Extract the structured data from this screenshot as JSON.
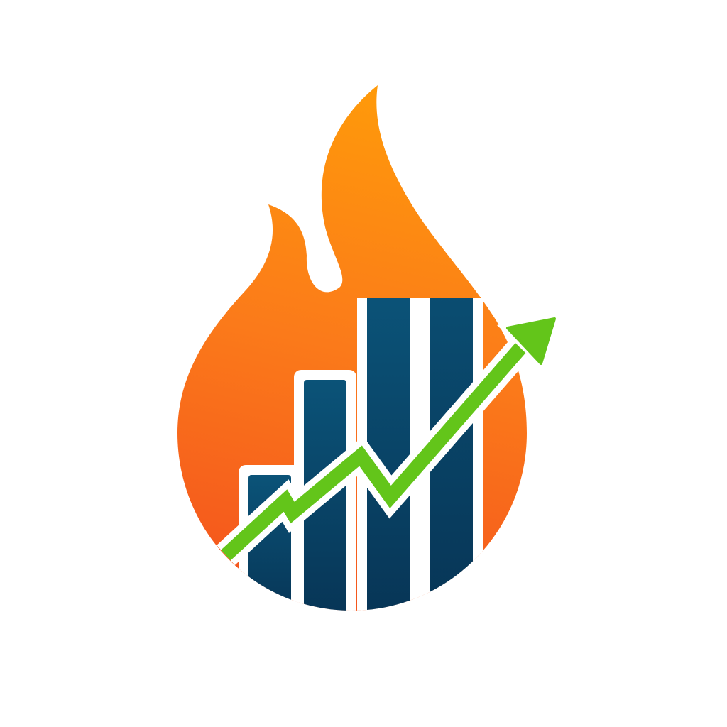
{
  "logo": {
    "icon": "flame-growth-chart-logo",
    "elements": [
      "flame-icon",
      "bar-chart-icon",
      "trend-up-arrow-icon"
    ],
    "bars_relative_heights": [
      0.3,
      0.5,
      0.68,
      0.85
    ]
  },
  "colors": {
    "background": "#ffffff",
    "flame_top": "#ff9a0a",
    "flame_mid": "#fb7a1a",
    "flame_bottom": "#f4541d",
    "bar_top": "#0b5378",
    "bar_bottom": "#073556",
    "bar_outline": "#ffffff",
    "arrow": "#63c51a"
  }
}
